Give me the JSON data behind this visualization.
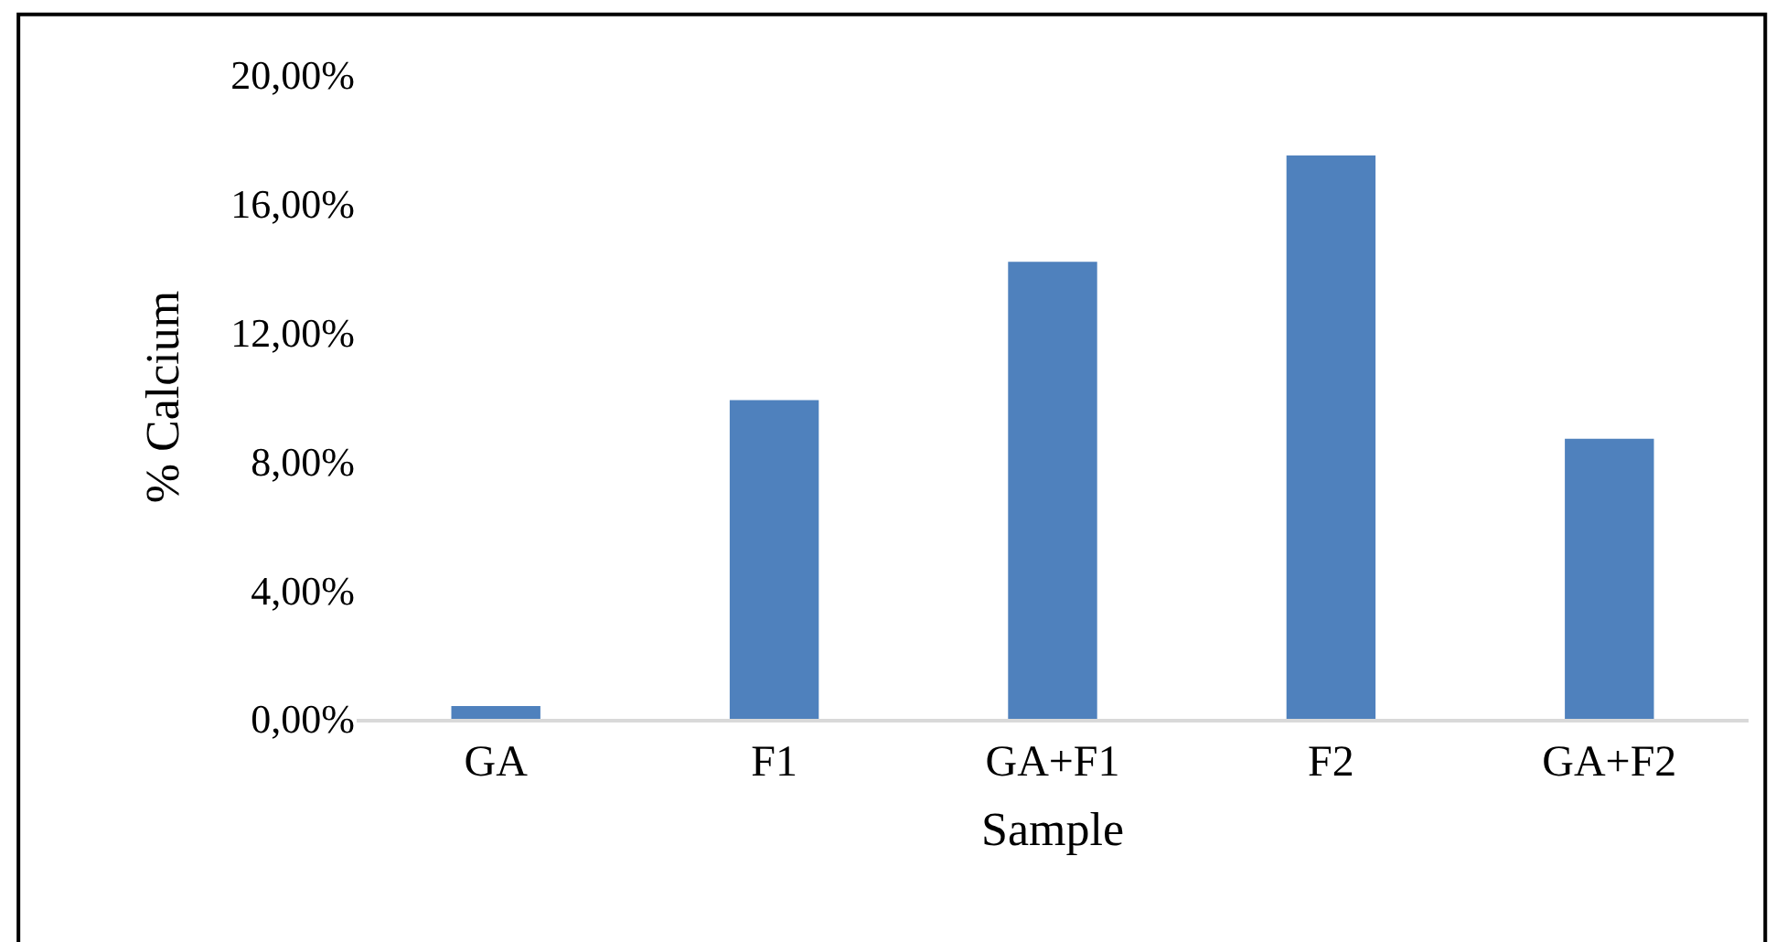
{
  "chart_data": {
    "type": "bar",
    "xlabel": "Sample",
    "ylabel": "% Calcium",
    "categories": [
      "GA",
      "F1",
      "GA+F1",
      "F2",
      "GA+F2"
    ],
    "values": [
      0.4,
      9.9,
      14.2,
      17.5,
      8.7
    ],
    "color": "#4f81bd",
    "ylim": [
      0,
      20
    ],
    "yticks": [
      {
        "value": 0,
        "label": "0,00%"
      },
      {
        "value": 4,
        "label": "4,00%"
      },
      {
        "value": 8,
        "label": "8,00%"
      },
      {
        "value": 12,
        "label": "12,00%"
      },
      {
        "value": 16,
        "label": "16,00%"
      },
      {
        "value": 20,
        "label": "20,00%"
      }
    ],
    "grid": false
  }
}
